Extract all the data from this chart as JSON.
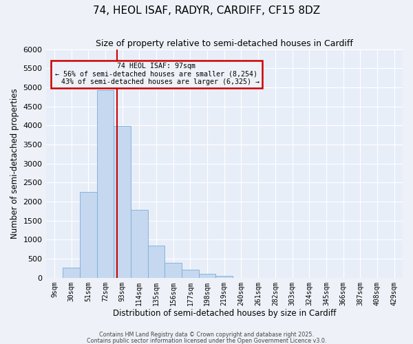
{
  "title": "74, HEOL ISAF, RADYR, CARDIFF, CF15 8DZ",
  "subtitle": "Size of property relative to semi-detached houses in Cardiff",
  "xlabel": "Distribution of semi-detached houses by size in Cardiff",
  "ylabel": "Number of semi-detached properties",
  "bar_labels": [
    "9sqm",
    "30sqm",
    "51sqm",
    "72sqm",
    "93sqm",
    "114sqm",
    "135sqm",
    "156sqm",
    "177sqm",
    "198sqm",
    "219sqm",
    "240sqm",
    "261sqm",
    "282sqm",
    "303sqm",
    "324sqm",
    "345sqm",
    "366sqm",
    "387sqm",
    "408sqm",
    "429sqm"
  ],
  "bar_values": [
    0,
    270,
    2260,
    4930,
    3980,
    1790,
    840,
    390,
    215,
    100,
    60,
    0,
    0,
    0,
    0,
    0,
    0,
    0,
    0,
    0,
    0
  ],
  "bin_edges": [
    9,
    30,
    51,
    72,
    93,
    114,
    135,
    156,
    177,
    198,
    219,
    240,
    261,
    282,
    303,
    324,
    345,
    366,
    387,
    408,
    429
  ],
  "bar_color": "#c5d8f0",
  "bar_edge_color": "#7badd4",
  "highlight_color": "#cc0000",
  "property_value": 97,
  "property_label": "74 HEOL ISAF: 97sqm",
  "pct_smaller": 56,
  "pct_larger": 43,
  "count_smaller": 8254,
  "count_larger": 6325,
  "ylim": [
    0,
    6000
  ],
  "yticks": [
    0,
    500,
    1000,
    1500,
    2000,
    2500,
    3000,
    3500,
    4000,
    4500,
    5000,
    5500,
    6000
  ],
  "background_color": "#eef2f8",
  "plot_bg_color": "#e8eef8",
  "grid_color": "#ffffff",
  "footer_line1": "Contains HM Land Registry data © Crown copyright and database right 2025.",
  "footer_line2": "Contains public sector information licensed under the Open Government Licence v3.0."
}
